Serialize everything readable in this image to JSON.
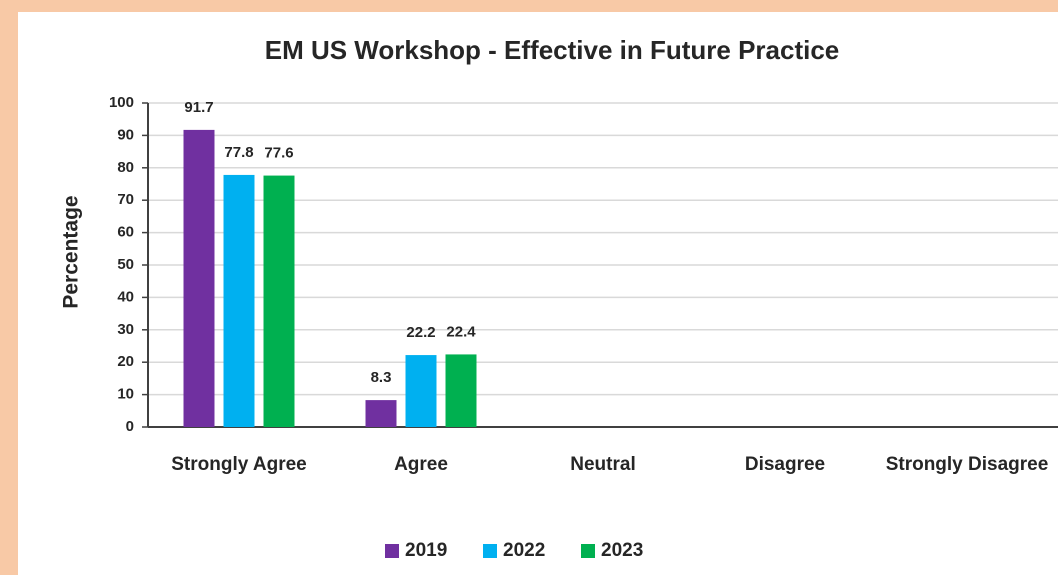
{
  "chart_data": {
    "type": "bar",
    "title": "EM US Workshop - Effective in Future Practice",
    "y_label": "Percentage",
    "categories": [
      "Strongly Agree",
      "Agree",
      "Neutral",
      "Disagree",
      "Strongly Disagree"
    ],
    "series": [
      {
        "name": "2019",
        "color": "#7030a0",
        "values": [
          91.7,
          8.3,
          null,
          null,
          null
        ]
      },
      {
        "name": "2022",
        "color": "#00b0f0",
        "values": [
          77.8,
          22.2,
          null,
          null,
          null
        ]
      },
      {
        "name": "2023",
        "color": "#00b050",
        "values": [
          77.6,
          22.4,
          null,
          null,
          null
        ]
      }
    ],
    "ylim": [
      0,
      100
    ],
    "yticks": [
      0,
      10,
      20,
      30,
      40,
      50,
      60,
      70,
      80,
      90,
      100
    ],
    "grid": true,
    "legend": "bottom"
  }
}
